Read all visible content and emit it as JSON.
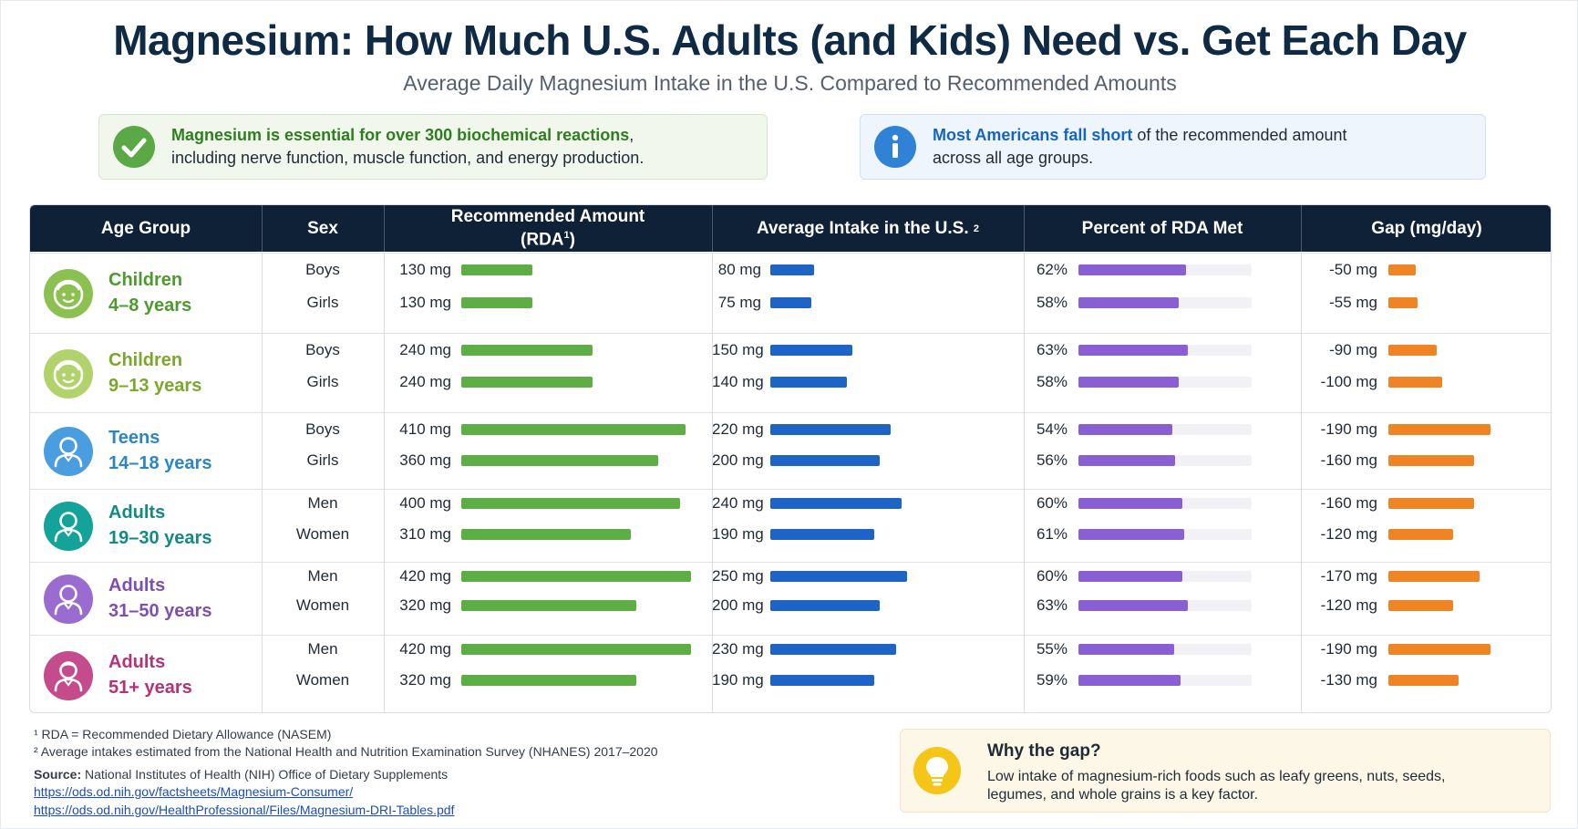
{
  "title": "Magnesium: How Much U.S. Adults (and Kids) Need vs. Get Each Day",
  "subtitle": "Average Daily Magnesium Intake in the U.S. Compared to Recommended Amounts",
  "callouts": {
    "left": {
      "highlight": "Magnesium is essential for over 300 biochemical reactions",
      "rest_line1": ",",
      "line2": "including nerve function, muscle function, and energy production.",
      "icon": "check-circle-icon",
      "color": "#5aa946"
    },
    "right": {
      "highlight": "Most Americans fall short",
      "rest_line1": " of the recommended amount",
      "line2": "across all age groups.",
      "icon": "info-circle-icon",
      "color": "#2f82d6"
    }
  },
  "table": {
    "headers": {
      "age_group": "Age Group",
      "sex": "Sex",
      "rda_line1": "Recommended Amount",
      "rda_line2": "(RDA",
      "rda_sup": "1",
      "rda_close": ")",
      "intake": "Average Intake in the U.S.",
      "intake_sup": "2",
      "percent": "Percent of RDA Met",
      "gap": "Gap (mg/day)"
    }
  },
  "chart_data": {
    "type": "table",
    "title": "Magnesium: How Much U.S. Adults (and Kids) Need vs. Get Each Day",
    "subtitle": "Average Daily Magnesium Intake in the U.S. Compared to Recommended Amounts",
    "columns": [
      "Age Group",
      "Sex",
      "Recommended Amount (RDA¹)",
      "Average Intake in the U.S.²",
      "Percent of RDA Met",
      "Gap (mg/day)"
    ],
    "colors": {
      "rda": "#5fae45",
      "intake": "#1e63c6",
      "percent": "#8a5fd3",
      "gap": "#f08323"
    },
    "groups": [
      {
        "name": "Children",
        "ages": "4–8 years",
        "color": "#4f9a2f",
        "avatar_color": "#8cc152",
        "avatar_icon": "child-face-icon",
        "rows": [
          {
            "sex": "Boys",
            "rda": 130,
            "rda_label": "130 mg",
            "intake": 80,
            "intake_label": "80 mg",
            "percent": 62,
            "percent_label": "62%",
            "gap": -50,
            "gap_label": "-50 mg"
          },
          {
            "sex": "Girls",
            "rda": 130,
            "rda_label": "130 mg",
            "intake": 75,
            "intake_label": "75 mg",
            "percent": 58,
            "percent_label": "58%",
            "gap": -55,
            "gap_label": "-55 mg"
          }
        ]
      },
      {
        "name": "Children",
        "ages": "9–13 years",
        "color": "#7aa82c",
        "avatar_color": "#b2d36b",
        "avatar_icon": "child-face-icon",
        "rows": [
          {
            "sex": "Boys",
            "rda": 240,
            "rda_label": "240 mg",
            "intake": 150,
            "intake_label": "150 mg",
            "percent": 63,
            "percent_label": "63%",
            "gap": -90,
            "gap_label": "-90 mg"
          },
          {
            "sex": "Girls",
            "rda": 240,
            "rda_label": "240 mg",
            "intake": 140,
            "intake_label": "140 mg",
            "percent": 58,
            "percent_label": "58%",
            "gap": -100,
            "gap_label": "-100 mg"
          }
        ]
      },
      {
        "name": "Teens",
        "ages": "14–18 years",
        "color": "#2b86c9",
        "avatar_color": "#4a9ee0",
        "avatar_icon": "teen-person-icon",
        "rows": [
          {
            "sex": "Boys",
            "rda": 410,
            "rda_label": "410 mg",
            "intake": 220,
            "intake_label": "220 mg",
            "percent": 54,
            "percent_label": "54%",
            "gap": -190,
            "gap_label": "-190 mg"
          },
          {
            "sex": "Girls",
            "rda": 360,
            "rda_label": "360 mg",
            "intake": 200,
            "intake_label": "200 mg",
            "percent": 56,
            "percent_label": "56%",
            "gap": -160,
            "gap_label": "-160 mg"
          }
        ]
      },
      {
        "name": "Adults",
        "ages": "19–30 years",
        "color": "#138a84",
        "avatar_color": "#14a39a",
        "avatar_icon": "adult-person-icon",
        "rows": [
          {
            "sex": "Men",
            "rda": 400,
            "rda_label": "400 mg",
            "intake": 240,
            "intake_label": "240 mg",
            "percent": 60,
            "percent_label": "60%",
            "gap": -160,
            "gap_label": "-160 mg"
          },
          {
            "sex": "Women",
            "rda": 310,
            "rda_label": "310 mg",
            "intake": 190,
            "intake_label": "190 mg",
            "percent": 61,
            "percent_label": "61%",
            "gap": -120,
            "gap_label": "-120 mg"
          }
        ]
      },
      {
        "name": "Adults",
        "ages": "31–50 years",
        "color": "#7e4fb3",
        "avatar_color": "#9b6ccf",
        "avatar_icon": "adult-person-icon",
        "rows": [
          {
            "sex": "Men",
            "rda": 420,
            "rda_label": "420 mg",
            "intake": 250,
            "intake_label": "250 mg",
            "percent": 60,
            "percent_label": "60%",
            "gap": -170,
            "gap_label": "-170 mg"
          },
          {
            "sex": "Women",
            "rda": 320,
            "rda_label": "320 mg",
            "intake": 200,
            "intake_label": "200 mg",
            "percent": 63,
            "percent_label": "63%",
            "gap": -120,
            "gap_label": "-120 mg"
          }
        ]
      },
      {
        "name": "Adults",
        "ages": "51+ years",
        "color": "#b53277",
        "avatar_color": "#c44b8c",
        "avatar_icon": "older-adult-icon",
        "rows": [
          {
            "sex": "Men",
            "rda": 420,
            "rda_label": "420 mg",
            "intake": 230,
            "intake_label": "230 mg",
            "percent": 55,
            "percent_label": "55%",
            "gap": -190,
            "gap_label": "-190 mg"
          },
          {
            "sex": "Women",
            "rda": 320,
            "rda_label": "320 mg",
            "intake": 190,
            "intake_label": "190 mg",
            "percent": 59,
            "percent_label": "59%",
            "gap": -130,
            "gap_label": "-130 mg"
          }
        ]
      }
    ]
  },
  "footnotes": {
    "fn1": "¹ RDA = Recommended Dietary Allowance (NASEM)",
    "fn2": "² Average intakes estimated from the National Health and Nutrition Examination Survey (NHANES) 2017–2020",
    "source_label": "Source:",
    "source_text": " National Institutes of Health (NIH) Office of Dietary Supplements",
    "link1": "https://ods.od.nih.gov/factsheets/Magnesium-Consumer/",
    "link2": "https://ods.od.nih.gov/HealthProfessional/Files/Magnesium-DRI-Tables.pdf"
  },
  "why_box": {
    "title": "Why the gap?",
    "text": "Low intake of magnesium-rich foods such as leafy greens, nuts, seeds, legumes, and whole grains is a key factor.",
    "icon": "lightbulb-icon",
    "icon_color": "#f5c518"
  }
}
